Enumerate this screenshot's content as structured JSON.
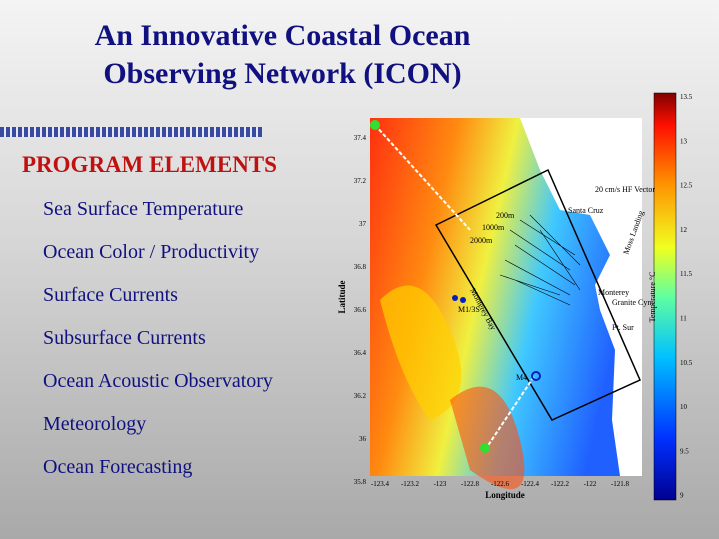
{
  "header": {
    "title": [
      "An Innovative Coastal Ocean",
      "Observing Network (ICON)"
    ]
  },
  "section_heading": "PROGRAM ELEMENTS",
  "items": [
    "Sea Surface Temperature",
    "Ocean Color / Productivity",
    "Surface Currents",
    "Subsurface Currents",
    "Ocean Acoustic Observatory",
    "Meteorology",
    "Ocean Forecasting"
  ],
  "map": {
    "x_label": "Longitude",
    "y_label": "Latitude",
    "y_ticks": [
      "37.4",
      "37.2",
      "37",
      "36.8",
      "36.6",
      "36.4",
      "36.2",
      "36",
      "35.8"
    ],
    "x_ticks": [
      "-123.4",
      "-123.2",
      "-123",
      "-122.8",
      "-122.6",
      "-122.4",
      "-122.2",
      "-122",
      "-121.8"
    ],
    "labels": [
      "Santa Cruz",
      "Moss Landing",
      "Monterey",
      "Granite Cyn.",
      "Pt. Sur",
      "M1/3S",
      "M4",
      "200m",
      "1000m",
      "2000m",
      "20 cm/s HF Vector",
      "Monterey Bay"
    ]
  },
  "colorbar": {
    "label": "Temperature °C",
    "ticks": [
      "13.5",
      "13",
      "12.5",
      "12",
      "11.5",
      "11",
      "10.5",
      "10",
      "9.5",
      "9"
    ]
  }
}
